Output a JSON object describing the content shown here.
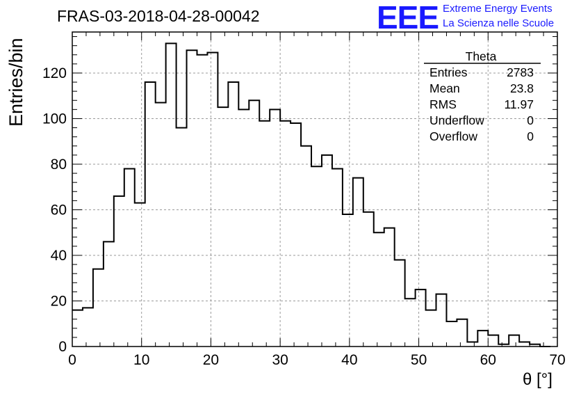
{
  "page": {
    "title": "FRAS-03-2018-04-28-00042",
    "logo": {
      "mark": "EEE",
      "line1": "Extreme Energy Events",
      "line2": "La Scienza nelle Scuole",
      "color": "#1a1aff"
    }
  },
  "chart_data": {
    "type": "bar",
    "title": "FRAS-03-2018-04-28-00042",
    "xlabel": "θ [°]",
    "ylabel": "Entries/bin",
    "xlim": [
      0,
      70
    ],
    "ylim": [
      0,
      138
    ],
    "xticks": [
      0,
      10,
      20,
      30,
      40,
      50,
      60,
      70
    ],
    "yticks": [
      0,
      20,
      40,
      60,
      80,
      100,
      120
    ],
    "grid": true,
    "bin_width": 1.5,
    "bins_start": 0,
    "values": [
      16,
      17,
      34,
      46,
      66,
      78,
      63,
      116,
      107,
      133,
      96,
      130,
      128,
      129,
      105,
      116,
      104,
      108,
      99,
      104,
      99,
      98,
      88,
      79,
      84,
      78,
      58,
      74,
      59,
      50,
      52,
      38,
      21,
      25,
      16,
      23,
      11,
      12,
      2,
      7,
      5,
      1,
      5,
      2,
      1,
      0
    ],
    "line_color": "#000000",
    "stats_box": {
      "title": "Theta",
      "rows": [
        {
          "label": "Entries",
          "value": "2783"
        },
        {
          "label": "Mean",
          "value": "23.8"
        },
        {
          "label": "RMS",
          "value": "11.97"
        },
        {
          "label": "Underflow",
          "value": "0"
        },
        {
          "label": "Overflow",
          "value": "0"
        }
      ]
    }
  }
}
